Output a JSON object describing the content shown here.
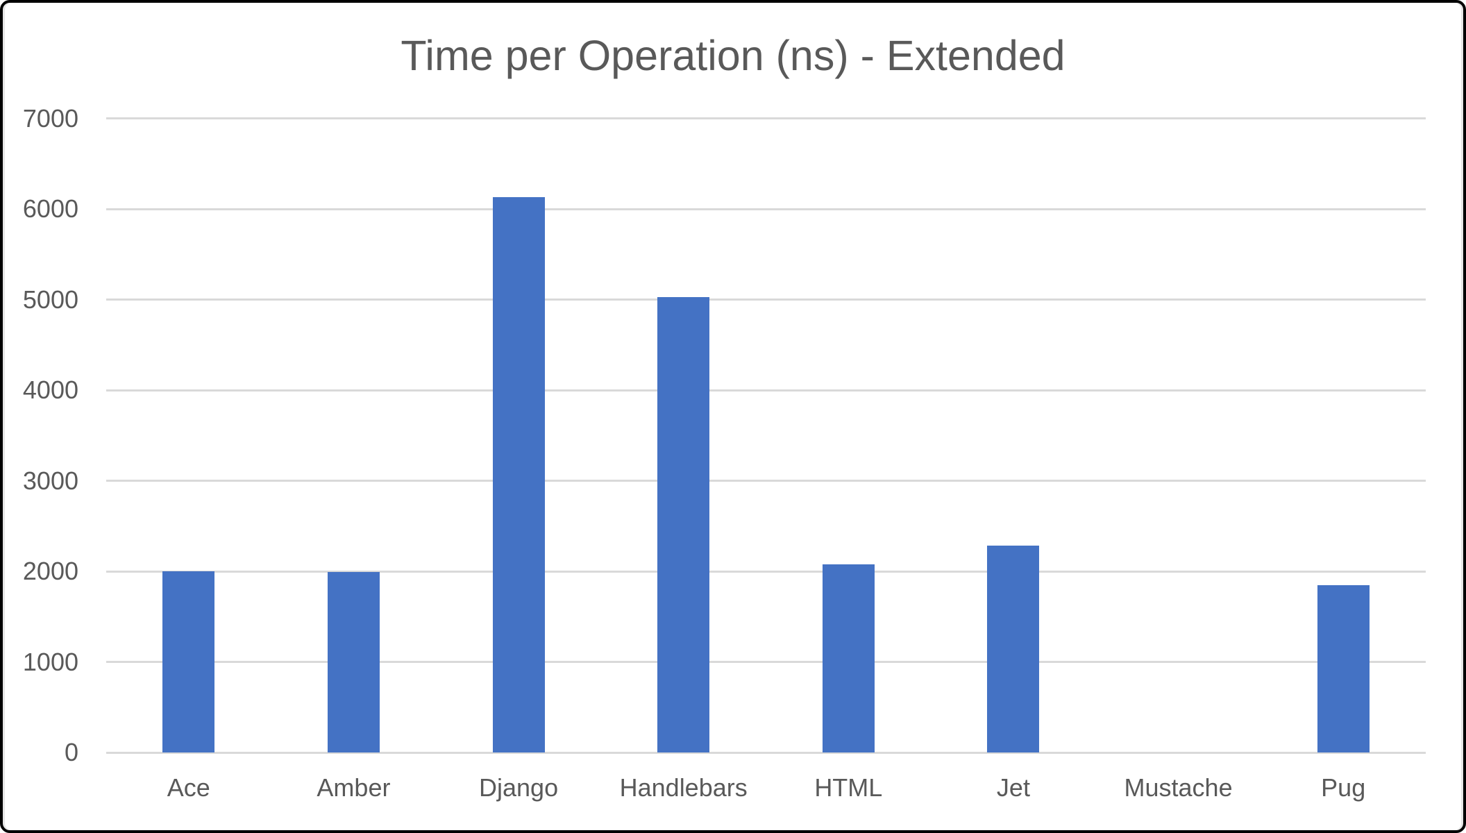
{
  "chart_data": {
    "type": "bar",
    "title": "Time per Operation (ns) - Extended",
    "categories": [
      "Ace",
      "Amber",
      "Django",
      "Handlebars",
      "HTML",
      "Jet",
      "Mustache",
      "Pug"
    ],
    "values": [
      2000,
      1990,
      6130,
      5030,
      2075,
      2285,
      0,
      1850
    ],
    "xlabel": "",
    "ylabel": "",
    "ylim": [
      0,
      7000
    ],
    "ytick_interval": 1000,
    "ytick_labels": [
      "0",
      "1000",
      "2000",
      "3000",
      "4000",
      "5000",
      "6000",
      "7000"
    ],
    "grid": true,
    "legend": false,
    "colors": {
      "bar": "#4472C4",
      "gridline": "#D9D9D9",
      "axis_line": "#D9D9D9",
      "text": "#595959",
      "background": "#FFFFFF",
      "frame_border": "#000000"
    }
  }
}
